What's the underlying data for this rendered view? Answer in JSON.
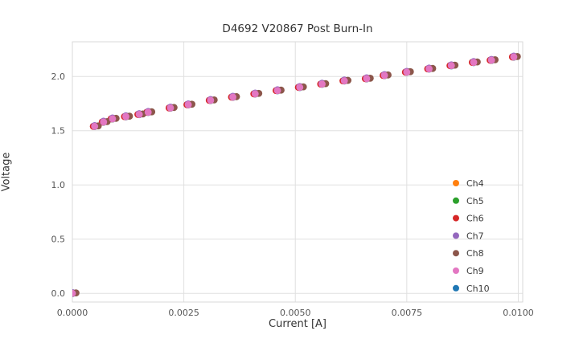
{
  "chart_data": {
    "type": "scatter",
    "title": "D4692 V20867 Post Burn-In",
    "xlabel": "Current [A]",
    "ylabel": "Voltage",
    "xlim": [
      0.0,
      0.0101
    ],
    "ylim": [
      -0.08,
      2.32
    ],
    "x_ticks": [
      0.0,
      0.0025,
      0.005,
      0.0075,
      0.01
    ],
    "x_tick_labels": [
      "0.0000",
      "0.0025",
      "0.0050",
      "0.0075",
      "0.0100"
    ],
    "y_ticks": [
      0.0,
      0.5,
      1.0,
      1.5,
      2.0
    ],
    "y_tick_labels": [
      "0.0",
      "0.5",
      "1.0",
      "1.5",
      "2.0"
    ],
    "grid": true,
    "legend_position": "lower right",
    "x": [
      0.0,
      0.0005,
      0.0007,
      0.0009,
      0.0012,
      0.0015,
      0.0017,
      0.0022,
      0.0026,
      0.0031,
      0.0036,
      0.0041,
      0.0046,
      0.0051,
      0.0056,
      0.0061,
      0.0066,
      0.007,
      0.0075,
      0.008,
      0.0085,
      0.009,
      0.0094,
      0.0099
    ],
    "base_y": [
      0.0,
      1.54,
      1.58,
      1.61,
      1.63,
      1.65,
      1.67,
      1.71,
      1.74,
      1.78,
      1.81,
      1.84,
      1.87,
      1.9,
      1.93,
      1.96,
      1.98,
      2.01,
      2.04,
      2.07,
      2.1,
      2.13,
      2.15,
      2.18
    ],
    "series": [
      {
        "name": "Ch4",
        "color": "#ff7f0e",
        "dx": 0.0,
        "dy": 0.0
      },
      {
        "name": "Ch5",
        "color": "#2ca02c",
        "dx": 0.0,
        "dy": 0.003
      },
      {
        "name": "Ch6",
        "color": "#d62728",
        "dx": -3e-05,
        "dy": 0.0
      },
      {
        "name": "Ch7",
        "color": "#9467bd",
        "dx": 0.0,
        "dy": 0.007
      },
      {
        "name": "Ch8",
        "color": "#8c564b",
        "dx": 8e-05,
        "dy": 0.004
      },
      {
        "name": "Ch9",
        "color": "#e377c2",
        "dx": 0.0,
        "dy": 0.0
      },
      {
        "name": "Ch10",
        "color": "#1f77b4",
        "dx": 0.0,
        "dy": -0.002
      }
    ],
    "draw_order": [
      6,
      0,
      1,
      2,
      3,
      4,
      5
    ],
    "colors": {
      "grid": "#e0e0e0",
      "spine": "#d9d9d9",
      "tick_text": "#555555",
      "legend_text": "#3a3a3a",
      "background": "#ffffff"
    }
  }
}
